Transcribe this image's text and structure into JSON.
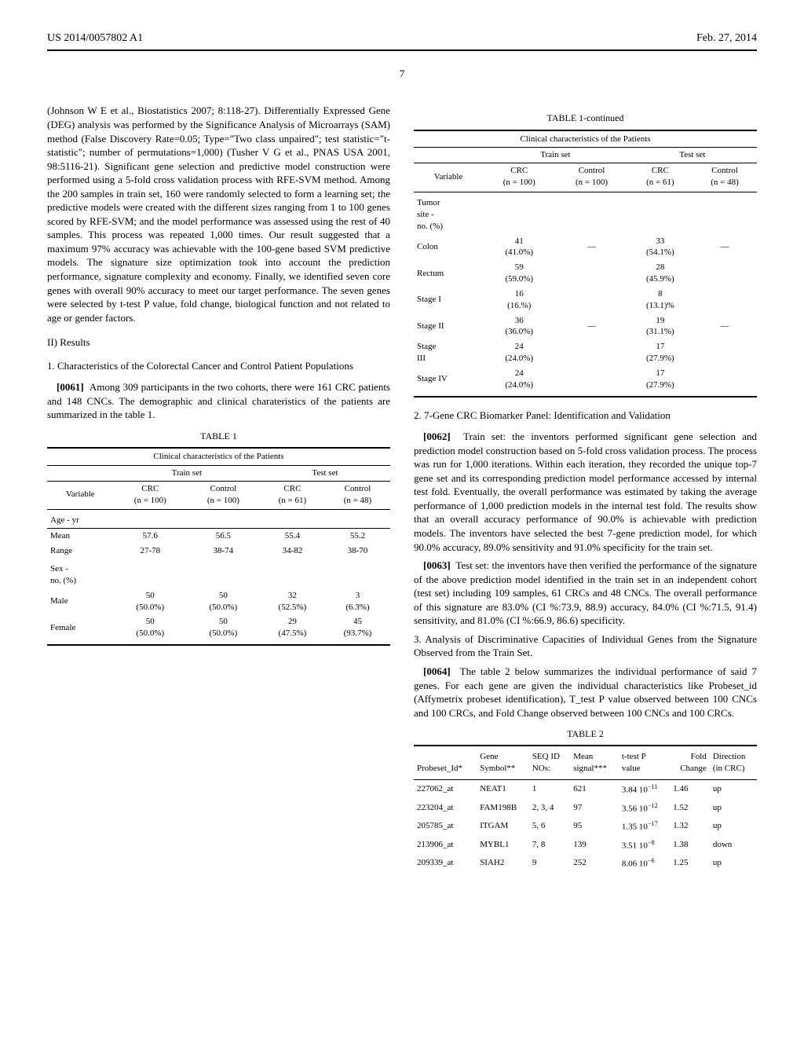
{
  "header": {
    "left": "US 2014/0057802 A1",
    "right": "Feb. 27, 2014"
  },
  "page_number": "7",
  "left_column": {
    "para1": "(Johnson W E et al., Biostatistics 2007; 8:118-27). Differentially Expressed Gene (DEG) analysis was performed by the Significance Analysis of Microarrays (SAM) method (False Discovery Rate=0.05; Type=\"Two class unpaired\"; test statistic=\"t-statistic\"; number of permutations=1,000) (Tusher V G et al., PNAS USA 2001, 98:5116-21). Significant gene selection and predictive model construction were performed using a 5-fold cross validation process with RFE-SVM method. Among the 200 samples in train set, 160 were randomly selected to form a learning set; the predictive models were created with the different sizes ranging from 1 to 100 genes scored by RFE-SVM; and the model performance was assessed using the rest of 40 samples. This process was repeated 1,000 times. Our result suggested that a maximum 97% accuracy was achievable with the 100-gene based SVM predictive models. The signature size optimization took into account the prediction performance, signature complexity and economy. Finally, we identified seven core genes with overall 90% accuracy to meet our target performance. The seven genes were selected by t-test P value, fold change, biological function and not related to age or gender factors.",
    "results_head": "II) Results",
    "sub1": "1. Characteristics of the Colorectal Cancer and Control Patient Populations",
    "para2_num": "[0061]",
    "para2": "Among 309 participants in the two cohorts, there were 161 CRC patients and 148 CNCs. The demographic and clinical charateristics of the patients are summarized in the table 1.",
    "table1_caption": "TABLE 1",
    "table1_subtitle": "Clinical characteristics of the Patients"
  },
  "table1": {
    "groups": {
      "train": "Train set",
      "test": "Test set"
    },
    "cols": {
      "variable": "Variable",
      "crc_train": "CRC\n(n = 100)",
      "control_train": "Control\n(n = 100)",
      "crc_test": "CRC\n(n = 61)",
      "control_test": "Control\n(n = 48)"
    },
    "age_section": "Age - yr",
    "rows_age": [
      {
        "v": "Mean",
        "a": "57.6",
        "b": "56.5",
        "c": "55.4",
        "d": "55.2"
      },
      {
        "v": "Range",
        "a": "27-78",
        "b": "38-74",
        "c": "34-82",
        "d": "38-70"
      }
    ],
    "sex_section": "Sex -\nno. (%)",
    "rows_sex": [
      {
        "v": "Male",
        "a": "50\n(50.0%)",
        "b": "50\n(50.0%)",
        "c": "32\n(52.5%)",
        "d": "3\n(6.3%)"
      },
      {
        "v": "Female",
        "a": "50\n(50.0%)",
        "b": "50\n(50.0%)",
        "c": "29\n(47.5%)",
        "d": "45\n(93.7%)"
      }
    ]
  },
  "table1c": {
    "caption": "TABLE 1-continued",
    "subtitle": "Clinical characteristics of the Patients",
    "tumor_section": "Tumor\nsite -\nno. (%)",
    "rows": [
      {
        "v": "Colon",
        "a": "41\n(41.0%)",
        "b": "—",
        "c": "33\n(54.1%)",
        "d": "—"
      },
      {
        "v": "Rectum",
        "a": "59\n(59.0%)",
        "b": "",
        "c": "28\n(45.9%)",
        "d": ""
      },
      {
        "v": "Stage I",
        "a": "16\n(16.%)",
        "b": "",
        "c": "8\n(13.1)%",
        "d": ""
      },
      {
        "v": "Stage II",
        "a": "36\n(36.0%)",
        "b": "—",
        "c": "19\n(31.1%)",
        "d": "—"
      },
      {
        "v": "Stage\nIII",
        "a": "24\n(24.0%)",
        "b": "",
        "c": "17\n(27.9%)",
        "d": ""
      },
      {
        "v": "Stage IV",
        "a": "24\n(24.0%)",
        "b": "",
        "c": "17\n(27.9%)",
        "d": ""
      }
    ]
  },
  "right_column": {
    "sub2": "2. 7-Gene CRC Biomarker Panel: Identification and Validation",
    "p62_num": "[0062]",
    "p62": "Train set: the inventors performed significant gene selection and prediction model construction based on 5-fold cross validation process. The process was run for 1,000 iterations. Within each iteration, they recorded the unique top-7 gene set and its corresponding prediction model performance accessed by internal test fold. Eventually, the overall performance was estimated by taking the average performance of 1,000 prediction models in the internal test fold. The results show that an overall accuracy performance of 90.0% is achievable with prediction models. The inventors have selected the best 7-gene prediction model, for which 90.0% accuracy, 89.0% sensitivity and 91.0% specificity for the train set.",
    "p63_num": "[0063]",
    "p63": "Test set: the inventors have then verified the performance of the signature of the above prediction model identified in the train set in an independent cohort (test set) including 109 samples, 61 CRCs and 48 CNCs. The overall performance of this signature are 83.0% (CI %:73.9, 88.9) accuracy, 84.0% (CI %:71.5, 91.4) sensitivity, and 81.0% (CI %:66.9, 86.6) specificity.",
    "sub3": "3. Analysis of Discriminative Capacities of Individual Genes from the Signature Observed from the Train Set.",
    "p64_num": "[0064]",
    "p64": "The table 2 below summarizes the individual performance of said 7 genes. For each gene are given the individual characteristics like Probeset_id (Affymetrix probeset identification), T_test P value observed between 100 CNCs and 100 CRCs, and Fold Change observed between 100 CNCs and 100 CRCs.",
    "table2_caption": "TABLE 2"
  },
  "table2": {
    "headers": {
      "probeset": "Probeset_Id*",
      "gene": "Gene\nSymbol**",
      "seq": "SEQ ID\nNOs:",
      "mean": "Mean\nsignal***",
      "ttest": "t-test P\nvalue",
      "fold": "Fold\nChange",
      "dir": "Direction\n(in CRC)"
    },
    "rows": [
      {
        "p": "227062_at",
        "g": "NEAT1",
        "s": "1",
        "m": "621",
        "t_base": "3.84 10",
        "t_exp": "−11",
        "f": "1.46",
        "d": "up"
      },
      {
        "p": "223204_at",
        "g": "FAM198B",
        "s": "2, 3, 4",
        "m": "97",
        "t_base": "3.56 10",
        "t_exp": "−12",
        "f": "1.52",
        "d": "up"
      },
      {
        "p": "205785_at",
        "g": "ITGAM",
        "s": "5, 6",
        "m": "95",
        "t_base": "1.35 10",
        "t_exp": "−17",
        "f": "1.32",
        "d": "up"
      },
      {
        "p": "213906_at",
        "g": "MYBL1",
        "s": "7, 8",
        "m": "139",
        "t_base": "3.51 10",
        "t_exp": "−8",
        "f": "1.38",
        "d": "down"
      },
      {
        "p": "209339_at",
        "g": "SIAH2",
        "s": "9",
        "m": "252",
        "t_base": "8.06 10",
        "t_exp": "−6",
        "f": "1.25",
        "d": "up"
      }
    ]
  }
}
